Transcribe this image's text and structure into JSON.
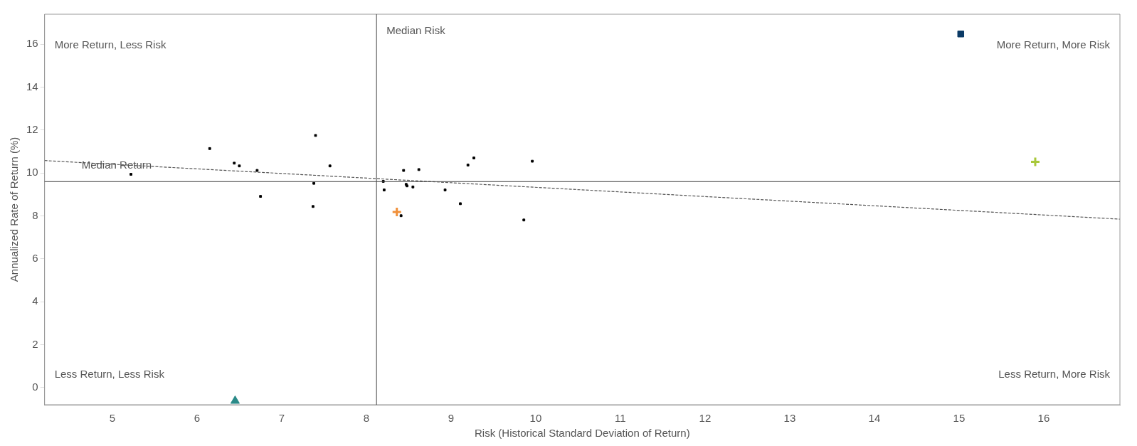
{
  "chart_data": {
    "type": "scatter",
    "xlabel": "Risk (Historical Standard Deviation of Return)",
    "ylabel": "Annualized Rate of Return (%)",
    "xlim": [
      4.2,
      16.9
    ],
    "xticks": [
      5,
      6,
      7,
      8,
      9,
      10,
      11,
      12,
      13,
      14,
      15,
      16
    ],
    "ylim": [
      -0.8,
      17.4
    ],
    "yticks": [
      0,
      2,
      4,
      6,
      8,
      10,
      12,
      14,
      16
    ],
    "grid": false,
    "legend": false,
    "series": [
      {
        "color": "#000000",
        "marker": "square",
        "x": [
          5.22,
          6.15,
          6.44,
          6.5,
          6.71,
          6.75,
          7.4,
          7.38,
          7.37,
          7.57,
          8.2,
          8.21,
          8.44,
          8.62,
          8.47,
          8.48,
          8.55,
          8.41,
          8.93,
          9.11,
          9.2,
          9.27,
          9.96,
          9.86
        ],
        "values": [
          9.94,
          11.14,
          10.46,
          10.33,
          10.12,
          8.91,
          11.75,
          9.52,
          8.44,
          10.33,
          9.61,
          9.21,
          10.12,
          10.16,
          9.47,
          9.4,
          9.35,
          8.01,
          9.21,
          8.57,
          10.37,
          10.7,
          10.55,
          7.81
        ]
      },
      {
        "color": "#0b3a66",
        "marker": "square",
        "x": [
          15.02
        ],
        "values": [
          16.48
        ]
      },
      {
        "color": "#a8c83a",
        "marker": "cross",
        "x": [
          15.9
        ],
        "values": [
          10.52
        ]
      },
      {
        "color": "#2a8a88",
        "marker": "triangle",
        "x": [
          6.45
        ],
        "values": [
          -0.62
        ]
      },
      {
        "color": "#f0903a",
        "marker": "cross",
        "x": [
          8.36
        ],
        "values": [
          8.18
        ]
      },
      {
        "type": "line",
        "color": "#555555",
        "line_style": "dashed",
        "marker": "none",
        "x": [
          4.2,
          16.9
        ],
        "values": [
          10.58,
          7.85
        ]
      }
    ],
    "ref_lines": [
      {
        "axis": "x",
        "value": 8.12,
        "label": "Median Risk"
      },
      {
        "axis": "y",
        "value": 9.6,
        "label": "Median Return"
      }
    ],
    "annotations": [
      "More Return, Less Risk",
      "More Return, More Risk",
      "Less Return, Less Risk",
      "Less Return, More Risk"
    ]
  }
}
